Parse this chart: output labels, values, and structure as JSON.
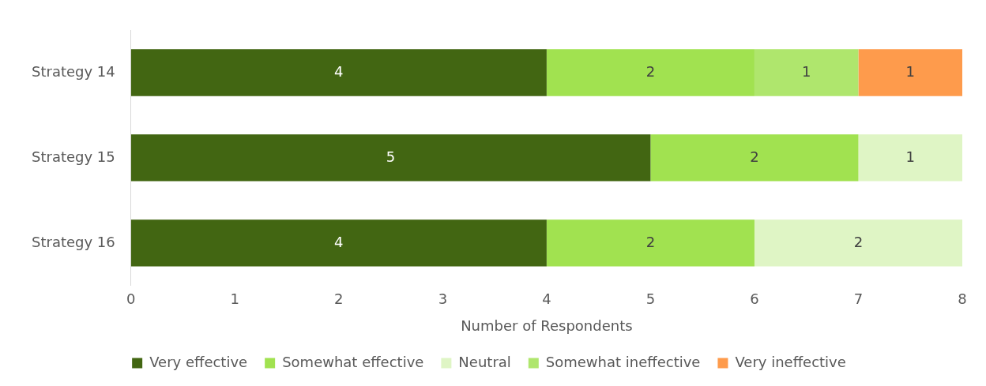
{
  "chart_data": {
    "type": "bar",
    "orientation": "horizontal",
    "stacked": true,
    "xlabel": "Number of Respondents",
    "categories": [
      "Strategy 14",
      "Strategy 15",
      "Strategy 16"
    ],
    "series": [
      {
        "name": "Very effective",
        "color": "#426612",
        "values": [
          4,
          5,
          4
        ]
      },
      {
        "name": "Somewhat effective",
        "color": "#a1e250",
        "values": [
          2,
          2,
          2
        ]
      },
      {
        "name": "Neutral",
        "color": "#dff5c5",
        "values": [
          null,
          1,
          2
        ]
      },
      {
        "name": "Somewhat ineffective",
        "color": "#afe66d",
        "values": [
          1,
          null,
          null
        ]
      },
      {
        "name": "Very ineffective",
        "color": "#fe9b4c",
        "values": [
          1,
          null,
          null
        ]
      }
    ],
    "xlim": [
      0,
      8
    ],
    "xticks": [
      0,
      1,
      2,
      3,
      4,
      5,
      6,
      7,
      8
    ],
    "grid": false,
    "legend": "bottom",
    "data_labels": true
  }
}
